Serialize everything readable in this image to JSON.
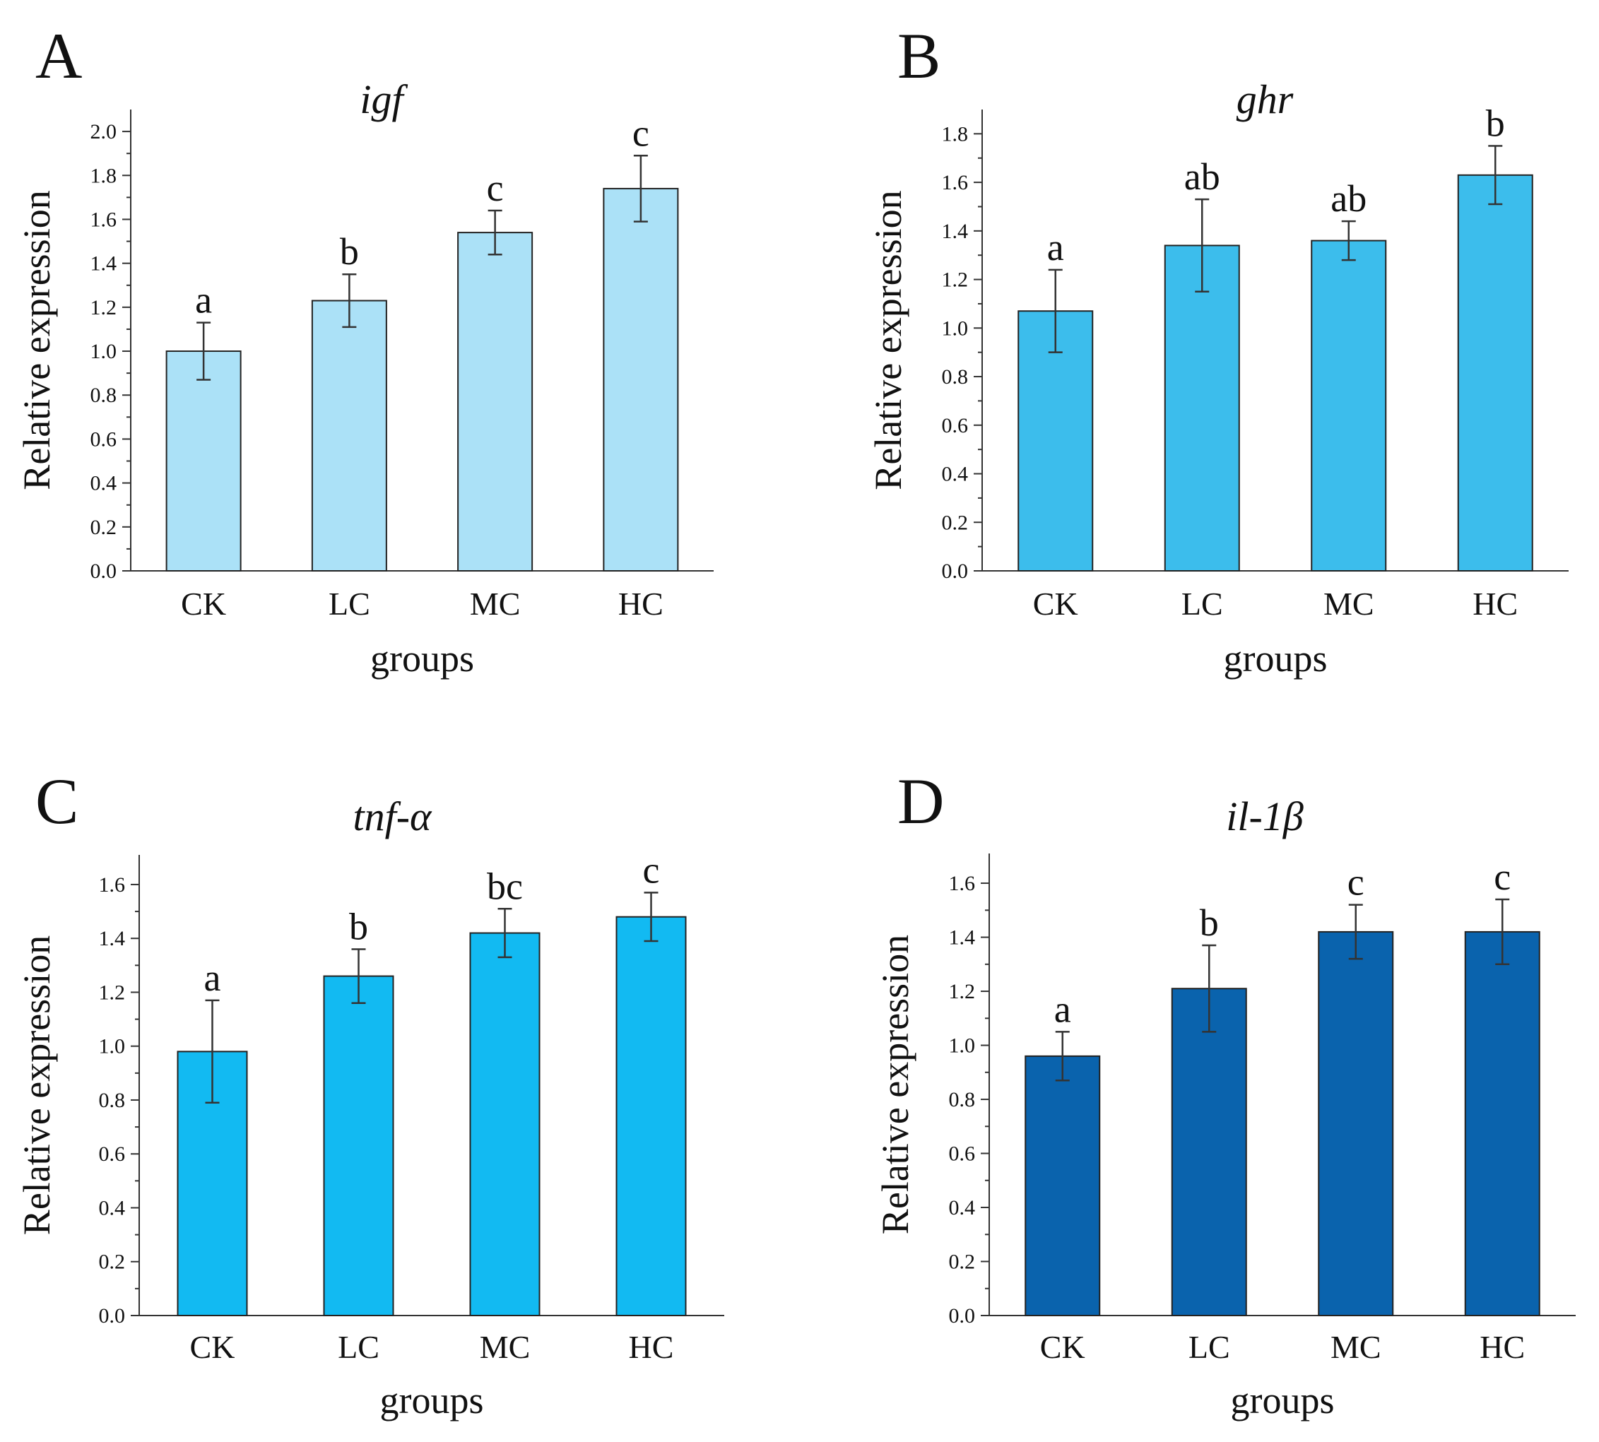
{
  "chart_data": [
    {
      "type": "bar",
      "panel": "A",
      "title": "igf",
      "xlabel": "groups",
      "ylabel": "Relative expression",
      "categories": [
        "CK",
        "LC",
        "MC",
        "HC"
      ],
      "values": [
        1.0,
        1.23,
        1.54,
        1.74
      ],
      "errors": [
        0.13,
        0.12,
        0.1,
        0.15
      ],
      "significance": [
        "a",
        "b",
        "c",
        "c"
      ],
      "ylim": [
        0,
        2.1
      ],
      "yticks": [
        0.0,
        0.2,
        0.4,
        0.6,
        0.8,
        1.0,
        1.2,
        1.4,
        1.6,
        1.8,
        2.0
      ],
      "ytick_labels": [
        "0.0",
        "0.2",
        "0.4",
        "0.6",
        "0.8",
        "1.0",
        "1.2",
        "1.4",
        "1.6",
        "1.8",
        "2.0"
      ],
      "bar_color": "#abe1f7"
    },
    {
      "type": "bar",
      "panel": "B",
      "title": "ghr",
      "xlabel": "groups",
      "ylabel": "Relative expression",
      "categories": [
        "CK",
        "LC",
        "MC",
        "HC"
      ],
      "values": [
        1.07,
        1.34,
        1.36,
        1.63
      ],
      "errors": [
        0.17,
        0.19,
        0.08,
        0.12
      ],
      "significance": [
        "a",
        "ab",
        "ab",
        "b"
      ],
      "ylim": [
        0,
        1.9
      ],
      "yticks": [
        0.0,
        0.2,
        0.4,
        0.6,
        0.8,
        1.0,
        1.2,
        1.4,
        1.6,
        1.8
      ],
      "ytick_labels": [
        "0.0",
        "0.2",
        "0.4",
        "0.6",
        "0.8",
        "1.0",
        "1.2",
        "1.4",
        "1.6",
        "1.8"
      ],
      "bar_color": "#3cbdec"
    },
    {
      "type": "bar",
      "panel": "C",
      "title": "tnf-α",
      "xlabel": "groups",
      "ylabel": "Relative expression",
      "categories": [
        "CK",
        "LC",
        "MC",
        "HC"
      ],
      "values": [
        0.98,
        1.26,
        1.42,
        1.48
      ],
      "errors": [
        0.19,
        0.1,
        0.09,
        0.09
      ],
      "significance": [
        "a",
        "b",
        "bc",
        "c"
      ],
      "ylim": [
        0,
        1.71
      ],
      "yticks": [
        0.0,
        0.2,
        0.4,
        0.6,
        0.8,
        1.0,
        1.2,
        1.4,
        1.6
      ],
      "ytick_labels": [
        "0.0",
        "0.2",
        "0.4",
        "0.6",
        "0.8",
        "1.0",
        "1.2",
        "1.4",
        "1.6"
      ],
      "bar_color": "#12baf2"
    },
    {
      "type": "bar",
      "panel": "D",
      "title": "il-1β",
      "xlabel": "groups",
      "ylabel": "Relative expression",
      "categories": [
        "CK",
        "LC",
        "MC",
        "HC"
      ],
      "values": [
        0.96,
        1.21,
        1.42,
        1.42
      ],
      "errors": [
        0.09,
        0.16,
        0.1,
        0.12
      ],
      "significance": [
        "a",
        "b",
        "c",
        "c"
      ],
      "ylim": [
        0,
        1.71
      ],
      "yticks": [
        0.0,
        0.2,
        0.4,
        0.6,
        0.8,
        1.0,
        1.2,
        1.4,
        1.6
      ],
      "ytick_labels": [
        "0.0",
        "0.2",
        "0.4",
        "0.6",
        "0.8",
        "1.0",
        "1.2",
        "1.4",
        "1.6"
      ],
      "bar_color": "#0a63ad"
    }
  ]
}
